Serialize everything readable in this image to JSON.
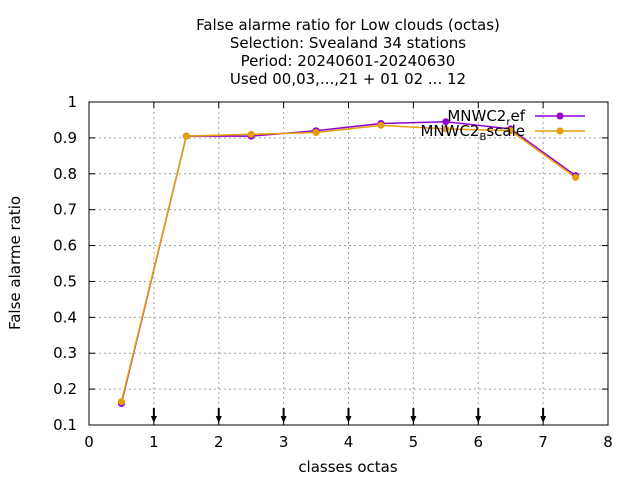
{
  "chart_data": {
    "type": "line",
    "title_lines": [
      "False alarme ratio  for Low clouds (octas)",
      "Selection: Svealand     34 stations",
      "Period: 20240601-20240630",
      "Used 00,03,...,21 + 01 02 ... 12"
    ],
    "xlabel": "classes octas",
    "ylabel": "False alarme ratio",
    "xlim": [
      0,
      8
    ],
    "ylim": [
      0.1,
      1.0
    ],
    "xticks": [
      "0",
      "1",
      "2",
      "3",
      "4",
      "5",
      "6",
      "7",
      "8"
    ],
    "yticks": [
      "0.1",
      "0.2",
      "0.3",
      "0.4",
      "0.5",
      "0.6",
      "0.7",
      "0.8",
      "0.9",
      "1"
    ],
    "grid": true,
    "legend_position": "top-right",
    "x": [
      0.5,
      1.5,
      2.5,
      3.5,
      4.5,
      5.5,
      6.5,
      7.5
    ],
    "series": [
      {
        "name_main": "MNWC2",
        "name_sub": "r",
        "name_tail": "ef",
        "color": "#9400d3",
        "values": [
          0.16,
          0.905,
          0.905,
          0.92,
          0.94,
          0.945,
          0.925,
          0.795
        ]
      },
      {
        "name_main": "MNWC2",
        "name_sub": "B",
        "name_tail": "scale",
        "color": "#e69f00",
        "values": [
          0.165,
          0.905,
          0.91,
          0.915,
          0.935,
          0.925,
          0.92,
          0.79
        ]
      }
    ],
    "arrow_markers_x": [
      1,
      2,
      3,
      4,
      5,
      6,
      7
    ]
  }
}
